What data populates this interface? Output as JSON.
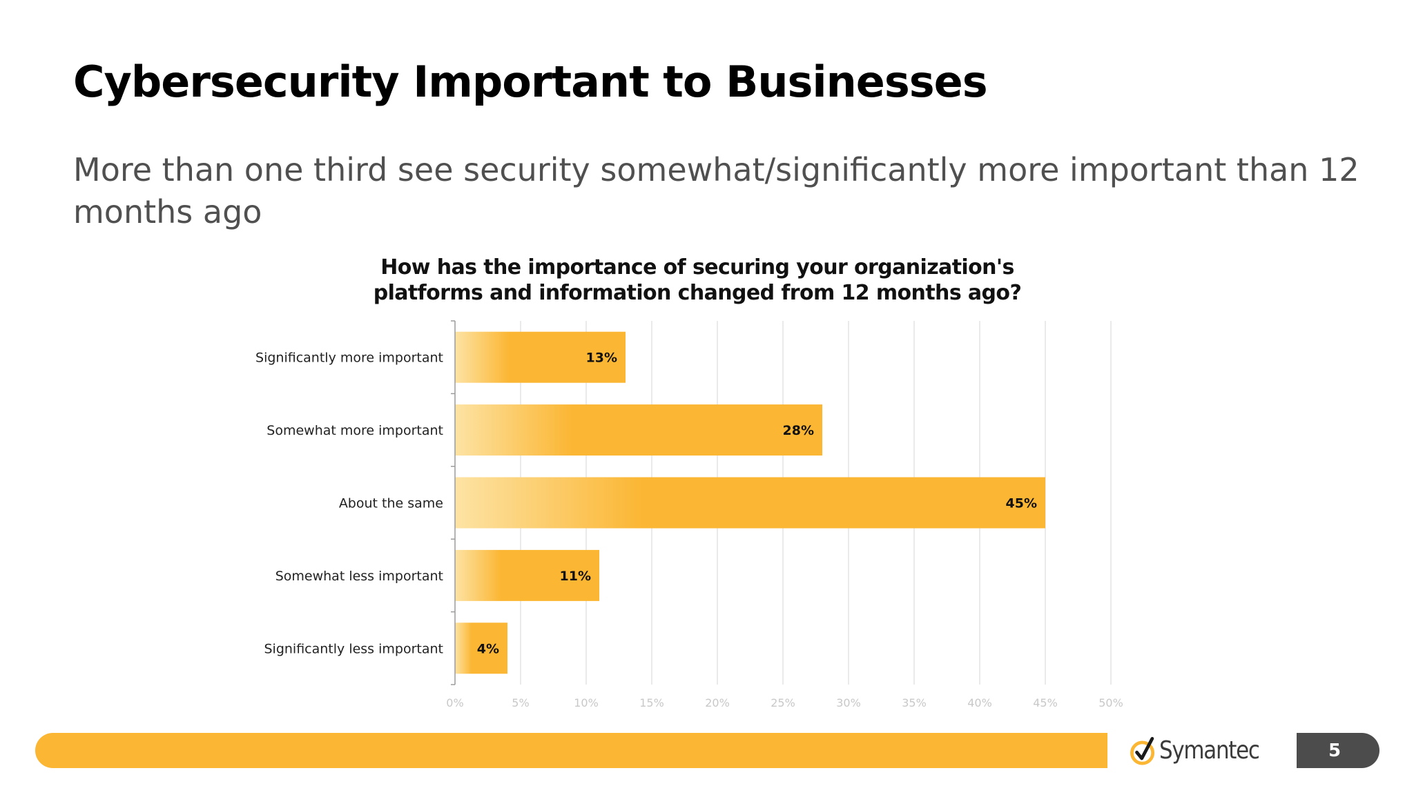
{
  "slide": {
    "title": "Cybersecurity Important to Businesses",
    "subtitle": "More than one third see security somewhat/significantly more important than 12 months ago"
  },
  "footer": {
    "brand": "Symantec",
    "page_number": "5",
    "bar_color": "#fbb633",
    "badge_color": "#4d4c4c"
  },
  "chart_data": {
    "type": "bar",
    "orientation": "horizontal",
    "title": "How has the importance of securing your organization's platforms and information changed from 12 months ago?",
    "title_lines": [
      "How has the importance of securing your organization's",
      "platforms and information changed from 12 months ago?"
    ],
    "categories": [
      "Significantly more important",
      "Somewhat more important",
      "About the same",
      "Somewhat less important",
      "Significantly less important"
    ],
    "values": [
      13,
      28,
      45,
      11,
      4
    ],
    "data_labels": [
      "13%",
      "28%",
      "45%",
      "11%",
      "4%"
    ],
    "unit": "%",
    "xlim": [
      0,
      50
    ],
    "xticks": [
      0,
      5,
      10,
      15,
      20,
      25,
      30,
      35,
      40,
      45,
      50
    ],
    "xtick_labels": [
      "0%",
      "5%",
      "10%",
      "15%",
      "20%",
      "25%",
      "30%",
      "35%",
      "40%",
      "45%",
      "50%"
    ],
    "xlabel": "",
    "ylabel": "",
    "grid": "vertical",
    "legend": "none",
    "bar_color_light": "#fde3a4",
    "bar_color": "#fbb633"
  }
}
